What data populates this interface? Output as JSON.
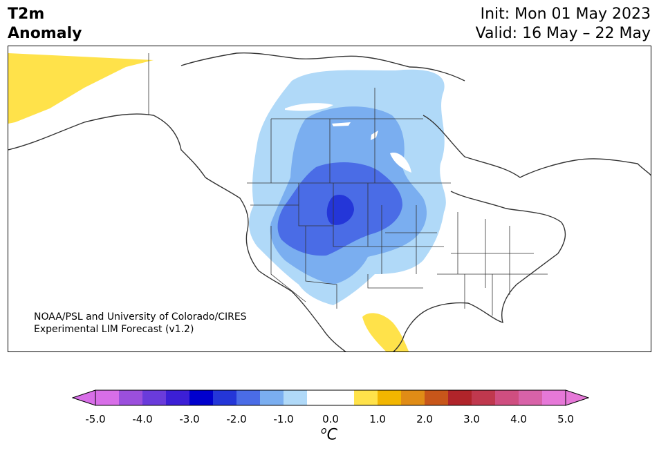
{
  "header": {
    "title_line1": "T2m",
    "title_line2": "Anomaly",
    "init": "Init: Mon 01 May 2023",
    "valid": "Valid: 16 May – 22 May"
  },
  "credit": {
    "line1": "NOAA/PSL and University of Colorado/CIRES",
    "line2": "Experimental LIM Forecast (v1.2)"
  },
  "colorbar": {
    "unit_base": "C",
    "unit_sup": "o",
    "ticks": [
      "-5.0",
      "-4.0",
      "-3.0",
      "-2.0",
      "-1.0",
      "0.0",
      "1.0",
      "2.0",
      "3.0",
      "4.0",
      "5.0"
    ],
    "colors": [
      "#d86ee8",
      "#9b4fdd",
      "#6a3bdb",
      "#3c1fd6",
      "#0000cd",
      "#2436d8",
      "#4a6ce6",
      "#7aaef0",
      "#b0d9f8",
      "#ffffff",
      "#ffffff",
      "#ffe24a",
      "#f2b600",
      "#e08c16",
      "#c8561a",
      "#b0242a",
      "#c0384e",
      "#cf4e80",
      "#d862a8",
      "#e678d8"
    ],
    "under_color": "#d86ee8",
    "over_color": "#e678d8"
  },
  "map": {
    "region": "North America",
    "anomaly_regions": [
      {
        "name": "alaska-warm",
        "level": "1.0",
        "color": "#ffe24a"
      },
      {
        "name": "mexico-warm",
        "level": "1.0",
        "color": "#ffe24a"
      },
      {
        "name": "west-cool-light",
        "level": "-1.0",
        "color": "#b0d9f8"
      },
      {
        "name": "west-cool-medium",
        "level": "-2.0",
        "color": "#7aaef0"
      },
      {
        "name": "west-cool-strong",
        "level": "-3.0",
        "color": "#4a6ce6"
      },
      {
        "name": "west-cool-core",
        "level": "-3.5",
        "color": "#2436d8"
      }
    ]
  }
}
